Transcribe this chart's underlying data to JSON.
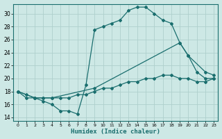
{
  "title": "",
  "xlabel": "Humidex (Indice chaleur)",
  "background_color": "#cde8e5",
  "grid_color": "#aed0cc",
  "line_color": "#1a6e6e",
  "xlim": [
    -0.5,
    23.5
  ],
  "ylim": [
    13.5,
    31.5
  ],
  "yticks": [
    14,
    16,
    18,
    20,
    22,
    24,
    26,
    28,
    30
  ],
  "xticks": [
    0,
    1,
    2,
    3,
    4,
    5,
    6,
    7,
    8,
    9,
    10,
    11,
    12,
    13,
    14,
    15,
    16,
    17,
    18,
    19,
    20,
    21,
    22,
    23
  ],
  "line1_x": [
    0,
    1,
    2,
    3,
    4,
    5,
    6,
    7,
    8,
    9,
    10,
    11,
    12,
    13,
    14,
    15,
    16,
    17,
    18,
    19,
    20,
    21,
    22,
    23
  ],
  "line1_y": [
    18,
    17,
    17,
    16.5,
    16,
    15,
    15,
    14.5,
    19,
    27.5,
    28,
    28.5,
    29,
    30.5,
    31,
    31,
    30,
    29,
    28.5,
    25.5,
    23.5,
    21,
    20,
    20
  ],
  "line2_x": [
    0,
    2,
    3,
    4,
    9,
    19,
    20,
    22,
    23
  ],
  "line2_y": [
    18,
    17,
    17,
    17,
    18.5,
    25.5,
    23.5,
    21,
    20.5
  ],
  "line3_x": [
    0,
    1,
    2,
    3,
    4,
    5,
    6,
    7,
    8,
    9,
    10,
    11,
    12,
    13,
    14,
    15,
    16,
    17,
    18,
    19,
    20,
    21,
    22,
    23
  ],
  "line3_y": [
    18,
    17.5,
    17,
    17,
    17,
    17,
    17,
    17.5,
    17.5,
    18,
    18.5,
    18.5,
    19,
    19.5,
    19.5,
    20,
    20,
    20.5,
    20.5,
    20,
    20,
    19.5,
    19.5,
    20
  ]
}
